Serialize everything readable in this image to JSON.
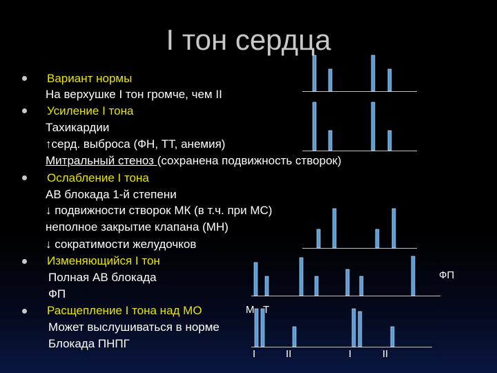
{
  "title": "I тон сердца",
  "colors": {
    "bar": "#5b9bd5",
    "baseline": "#c0c0c0",
    "highlight": "#e9e400"
  },
  "lines": {
    "l1": "Вариант нормы",
    "l2": "На верхушке I тон громче, чем II",
    "l3": "Усиление I тона",
    "l4": "Тахикардии",
    "l5": "↑серд. выброса (ФН, ТТ, анемия)",
    "l6a": "Митральный стеноз ",
    "l6b": "(сохранена подвижность створок)",
    "l7": "Ослабление I тона",
    "l8": "АВ блокада 1-й степени",
    "l9": "↓ подвижности створок МК (в т.ч. при МС)",
    "l10": " неполное закрытие клапана (МН)",
    "l11": "↓ сократимости желудочков",
    "l12": "Изменяющийся I тон",
    "l13": "Полная АВ блокада",
    "l14": "ФП",
    "l15": "Расщепление I тона над МО",
    "l16": "Может выслушиваться в норме",
    "l17": "Блокада ПНПГ"
  },
  "diagram_labels": {
    "fp": "ФП",
    "m": "М",
    "t": "Т",
    "tone1a": "I",
    "tone2a": "II",
    "tone1b": "I",
    "tone2b": "II"
  },
  "rows": [
    {
      "name": "norma",
      "bars": [
        1.0,
        0.62,
        1.0,
        0.62
      ]
    },
    {
      "name": "usilenie",
      "bars": [
        1.0,
        0.42,
        1.0,
        0.42
      ]
    },
    {
      "name": "oslablenie",
      "bars": [
        0.45,
        0.95,
        0.45,
        0.95
      ]
    },
    {
      "name": "izmenyayushiysya",
      "bars": [
        0.78,
        0.45,
        0.88,
        0.45,
        0.62,
        0.45,
        0.92
      ]
    },
    {
      "name": "rasshcheplenie",
      "bars": [
        0.88,
        0.88,
        0.46,
        0.88,
        0.82,
        0.46
      ]
    }
  ]
}
